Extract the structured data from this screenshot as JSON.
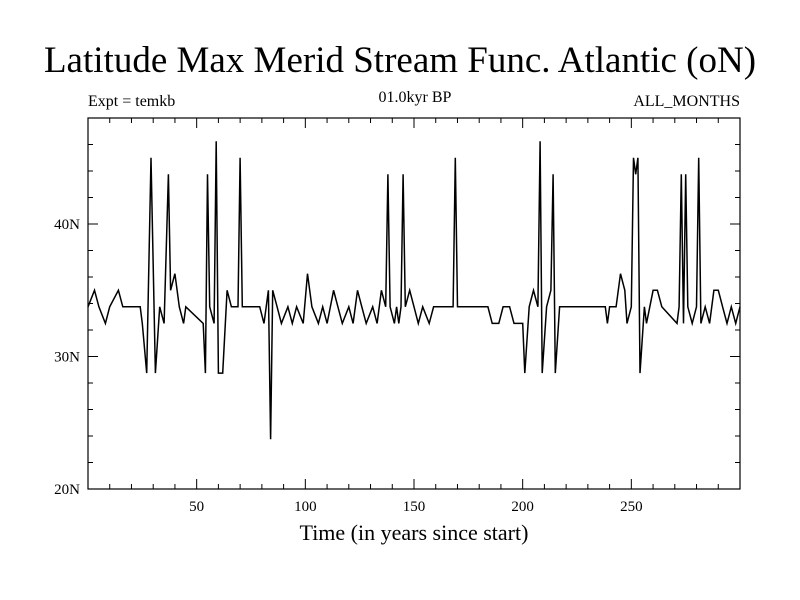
{
  "chart_data": {
    "type": "line",
    "title": "Latitude Max Merid Stream Func. Atlantic (oN)",
    "subtitle_left": "Expt = temkb",
    "subtitle_center": "01.0kyr BP",
    "subtitle_right": "ALL_MONTHS",
    "xlabel": "Time (in years since start)",
    "ylabel": "",
    "xlim": [
      0,
      300
    ],
    "ylim": [
      20,
      48
    ],
    "x_ticks": [
      50,
      100,
      150,
      200,
      250
    ],
    "x_tick_labels": [
      "50",
      "100",
      "150",
      "200",
      "250"
    ],
    "y_ticks": [
      20,
      30,
      40
    ],
    "y_tick_labels": [
      "20N",
      "30N",
      "40N"
    ],
    "baseline": 33.75,
    "spikes": [
      [
        3,
        35
      ],
      [
        5,
        33.75
      ],
      [
        8,
        32.5
      ],
      [
        10,
        33.75
      ],
      [
        14,
        35
      ],
      [
        16,
        33.75
      ],
      [
        24,
        33.75
      ],
      [
        25,
        32.5
      ],
      [
        27,
        28.75
      ],
      [
        29,
        45
      ],
      [
        31,
        28.75
      ],
      [
        33,
        33.75
      ],
      [
        35,
        32.5
      ],
      [
        37,
        43.75
      ],
      [
        38,
        35
      ],
      [
        40,
        36.25
      ],
      [
        42,
        33.75
      ],
      [
        44,
        32.5
      ],
      [
        45,
        33.75
      ],
      [
        53,
        32.5
      ],
      [
        54,
        28.75
      ],
      [
        55,
        43.75
      ],
      [
        56,
        33.75
      ],
      [
        58,
        32.5
      ],
      [
        59,
        46.25
      ],
      [
        60,
        28.75
      ],
      [
        62,
        28.75
      ],
      [
        64,
        35
      ],
      [
        66,
        33.75
      ],
      [
        69,
        33.75
      ],
      [
        70,
        45
      ],
      [
        71,
        33.75
      ],
      [
        79,
        33.75
      ],
      [
        81,
        32.5
      ],
      [
        83,
        35
      ],
      [
        84,
        23.75
      ],
      [
        85,
        35
      ],
      [
        87,
        33.75
      ],
      [
        89,
        32.5
      ],
      [
        92,
        33.75
      ],
      [
        94,
        32.5
      ],
      [
        96,
        33.75
      ],
      [
        99,
        32.5
      ],
      [
        101,
        36.25
      ],
      [
        103,
        33.75
      ],
      [
        106,
        32.5
      ],
      [
        108,
        33.75
      ],
      [
        110,
        32.5
      ],
      [
        113,
        35
      ],
      [
        115,
        33.75
      ],
      [
        117,
        32.5
      ],
      [
        120,
        33.75
      ],
      [
        122,
        32.5
      ],
      [
        124,
        35
      ],
      [
        126,
        33.75
      ],
      [
        128,
        32.5
      ],
      [
        131,
        33.75
      ],
      [
        133,
        32.5
      ],
      [
        135,
        35
      ],
      [
        137,
        33.75
      ],
      [
        138,
        43.75
      ],
      [
        139,
        33.75
      ],
      [
        141,
        32.5
      ],
      [
        142,
        33.75
      ],
      [
        143,
        32.5
      ],
      [
        144,
        33.75
      ],
      [
        145,
        43.75
      ],
      [
        146,
        33.75
      ],
      [
        148,
        35
      ],
      [
        150,
        33.75
      ],
      [
        152,
        32.5
      ],
      [
        154,
        33.75
      ],
      [
        157,
        32.5
      ],
      [
        159,
        33.75
      ],
      [
        168,
        33.75
      ],
      [
        169,
        45
      ],
      [
        170,
        33.75
      ],
      [
        184,
        33.75
      ],
      [
        186,
        32.5
      ],
      [
        189,
        32.5
      ],
      [
        191,
        33.75
      ],
      [
        194,
        33.75
      ],
      [
        196,
        32.5
      ],
      [
        200,
        32.5
      ],
      [
        201,
        28.75
      ],
      [
        203,
        33.75
      ],
      [
        205,
        35
      ],
      [
        207,
        33.75
      ],
      [
        208,
        46.25
      ],
      [
        209,
        28.75
      ],
      [
        211,
        33.75
      ],
      [
        213,
        35
      ],
      [
        214,
        43.75
      ],
      [
        215,
        28.75
      ],
      [
        217,
        33.75
      ],
      [
        238,
        33.75
      ],
      [
        239,
        32.5
      ],
      [
        240,
        33.75
      ],
      [
        243,
        33.75
      ],
      [
        245,
        36.25
      ],
      [
        247,
        35
      ],
      [
        248,
        32.5
      ],
      [
        250,
        33.75
      ],
      [
        251,
        45
      ],
      [
        252,
        43.75
      ],
      [
        253,
        45
      ],
      [
        254,
        28.75
      ],
      [
        256,
        33.75
      ],
      [
        257,
        32.5
      ],
      [
        260,
        35
      ],
      [
        262,
        35
      ],
      [
        264,
        33.75
      ],
      [
        271,
        32.5
      ],
      [
        272,
        33.75
      ],
      [
        273,
        43.75
      ],
      [
        274,
        32.5
      ],
      [
        275,
        43.75
      ],
      [
        276,
        33.75
      ],
      [
        278,
        32.5
      ],
      [
        280,
        33.75
      ],
      [
        281,
        45
      ],
      [
        282,
        32.5
      ],
      [
        284,
        33.75
      ],
      [
        286,
        32.5
      ],
      [
        288,
        35
      ],
      [
        290,
        35
      ],
      [
        292,
        33.75
      ],
      [
        294,
        32.5
      ],
      [
        296,
        33.75
      ],
      [
        298,
        32.5
      ],
      [
        300,
        33.75
      ]
    ]
  }
}
